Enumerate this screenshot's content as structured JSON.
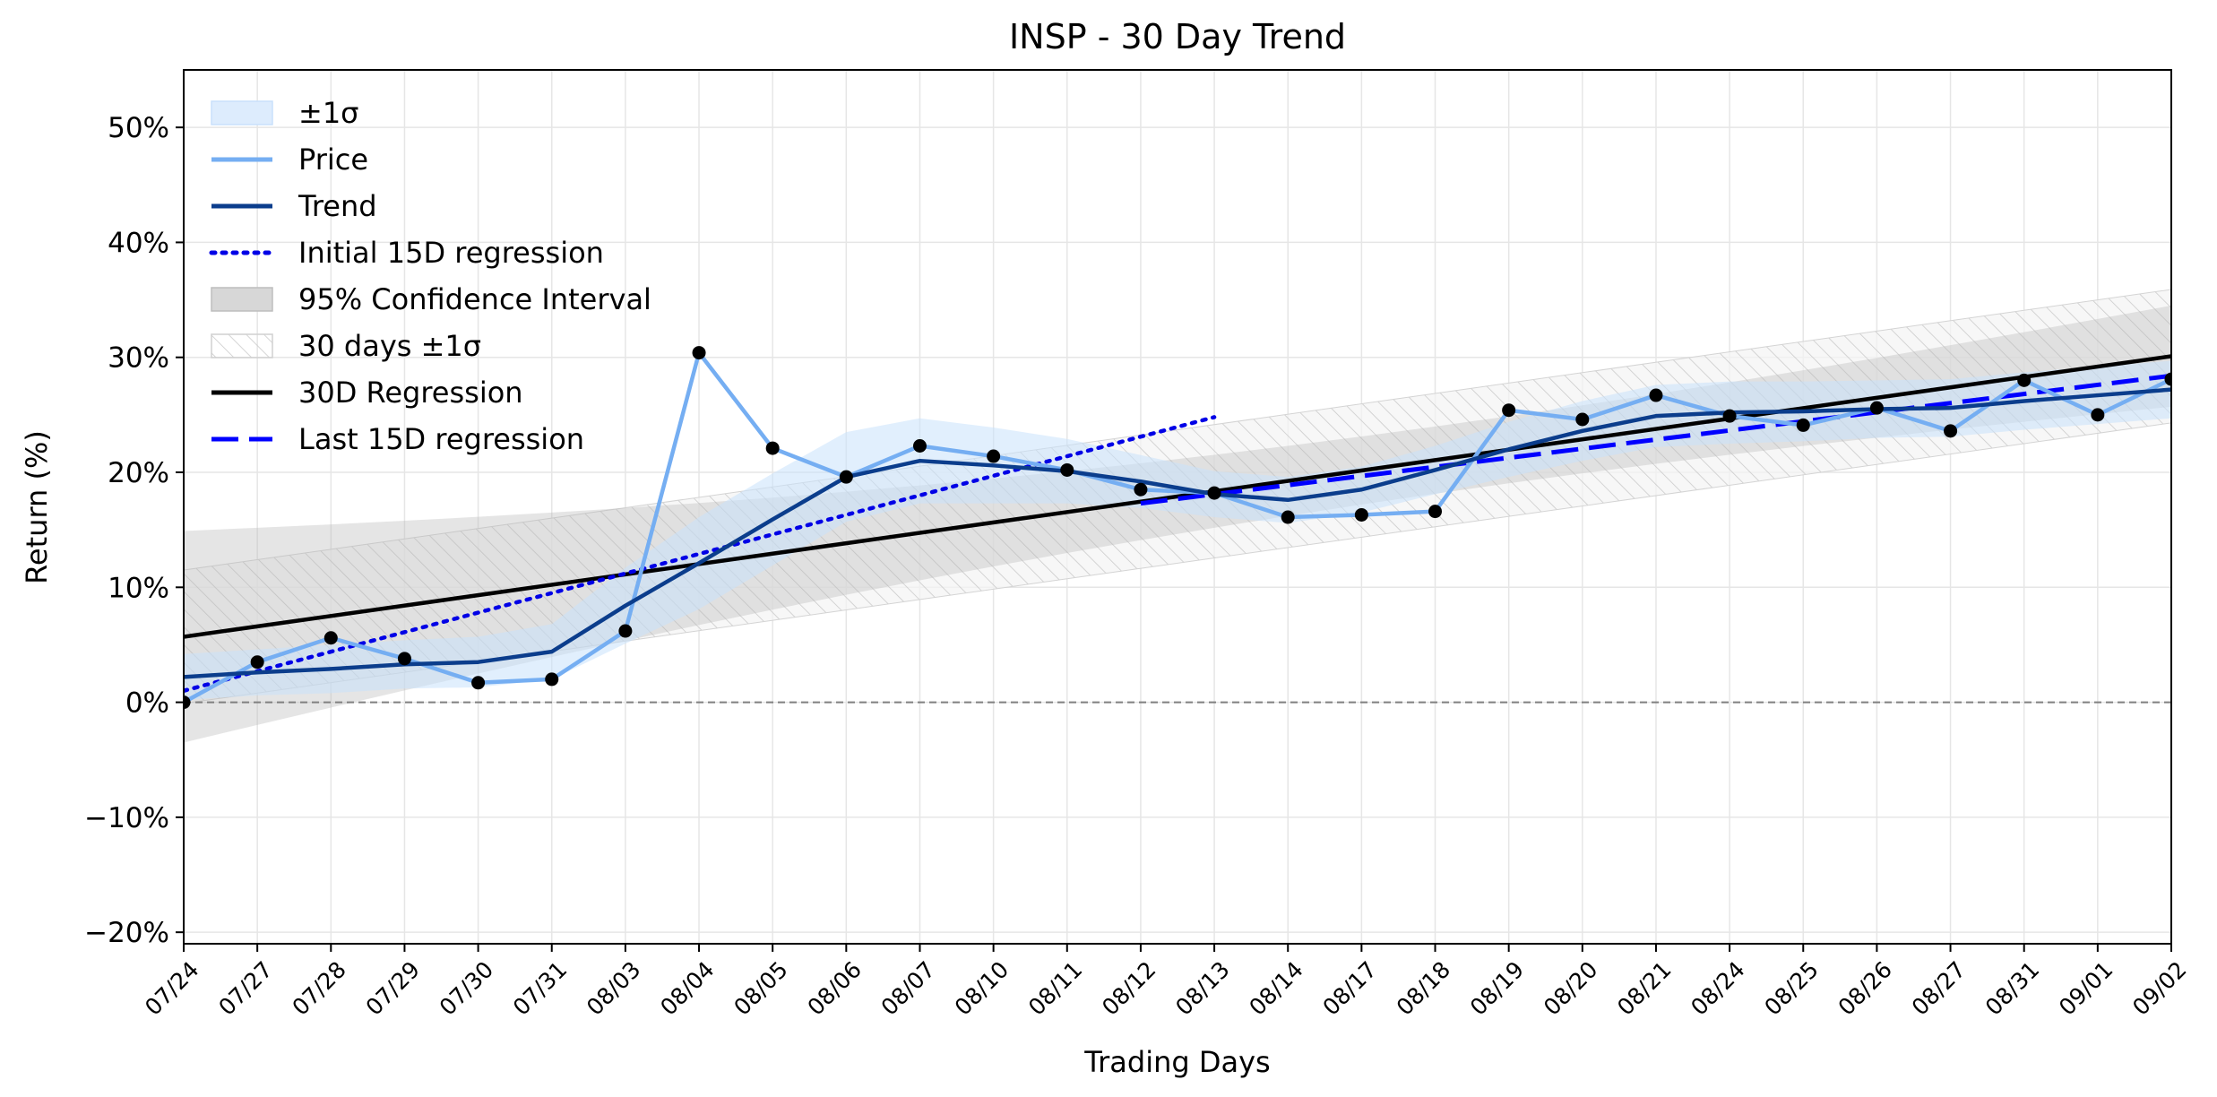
{
  "chart_data": {
    "type": "line",
    "title": "INSP - 30 Day Trend",
    "xlabel": "Trading Days",
    "ylabel": "Return (%)",
    "ylim": [
      -21,
      55
    ],
    "yticks": [
      -20,
      -10,
      0,
      10,
      20,
      30,
      40,
      50
    ],
    "ytick_labels": [
      "−20%",
      "−10%",
      "0%",
      "10%",
      "20%",
      "30%",
      "40%",
      "50%"
    ],
    "grid": true,
    "legend_position": "top-left",
    "categories": [
      "07/24",
      "07/27",
      "07/28",
      "07/29",
      "07/30",
      "07/31",
      "08/03",
      "08/04",
      "08/05",
      "08/06",
      "08/07",
      "08/10",
      "08/11",
      "08/12",
      "08/13",
      "08/14",
      "08/17",
      "08/18",
      "08/19",
      "08/20",
      "08/21",
      "08/24",
      "08/25",
      "08/26",
      "08/27",
      "08/31",
      "09/01",
      "09/02"
    ],
    "series": [
      {
        "name": "Price",
        "role": "price",
        "color": "#75aef2",
        "values": [
          0.0,
          3.5,
          5.6,
          3.8,
          1.7,
          2.0,
          6.2,
          30.4,
          22.1,
          19.6,
          22.3,
          21.4,
          20.2,
          18.5,
          18.2,
          16.1,
          16.3,
          16.6,
          25.4,
          24.6,
          26.7,
          24.9,
          24.1,
          25.6,
          23.6,
          28.0,
          25.0,
          28.1
        ]
      },
      {
        "name": "Trend",
        "role": "trend",
        "color": "#0b3d8c",
        "values": [
          2.2,
          2.6,
          2.9,
          3.3,
          3.5,
          4.4,
          8.4,
          12.1,
          15.9,
          19.6,
          21.0,
          20.6,
          20.1,
          19.2,
          18.1,
          17.6,
          18.5,
          20.2,
          22.0,
          23.6,
          24.9,
          25.2,
          25.3,
          25.5,
          25.6,
          26.2,
          26.7,
          27.2
        ]
      },
      {
        "name": "Initial 15D regression",
        "role": "initial",
        "color": "#0000e6",
        "dash": "dotted",
        "x_range": [
          0,
          14
        ],
        "y_range": [
          1.0,
          24.8
        ]
      },
      {
        "name": "30D Regression",
        "role": "reg30",
        "color": "#000000",
        "x_range": [
          0,
          27
        ],
        "y_range": [
          5.7,
          30.1
        ]
      },
      {
        "name": "Last 15D regression",
        "role": "last",
        "color": "#0000ff",
        "dash": "dashed",
        "x_range": [
          13,
          27
        ],
        "y_range": [
          17.3,
          28.4
        ]
      }
    ],
    "bands": [
      {
        "name": "±1σ",
        "role": "sigma",
        "color": "#dbeafc",
        "half_width": [
          2.0,
          2.0,
          2.1,
          2.1,
          2.2,
          2.4,
          3.3,
          4.0,
          4.0,
          3.9,
          3.7,
          3.3,
          2.8,
          2.3,
          2.0,
          2.0,
          2.0,
          2.1,
          2.4,
          2.6,
          2.7,
          2.7,
          2.6,
          2.5,
          2.5,
          2.5,
          2.5,
          2.5
        ]
      },
      {
        "name": "95% Confidence Interval",
        "role": "ci",
        "color": "#bbbbbb",
        "half_width_ends": [
          4.6,
          2.1,
          4.4
        ]
      },
      {
        "name": "30 days ±1σ",
        "role": "hatch",
        "color": "#cccccc",
        "half_width": 5.8
      }
    ],
    "reference_line": {
      "y": 0,
      "style": "dashed",
      "color": "#808080"
    },
    "point_color": "#000000"
  }
}
